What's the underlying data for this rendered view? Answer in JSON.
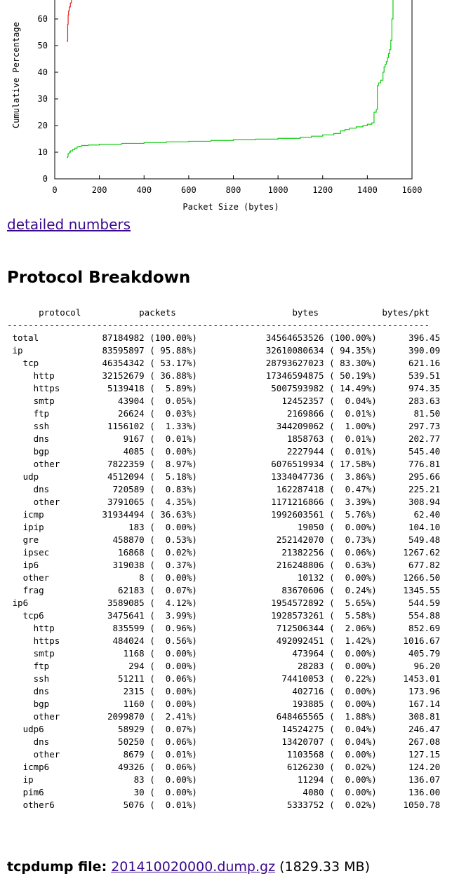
{
  "chart_data": {
    "type": "line",
    "xlabel": "Packet Size (bytes)",
    "ylabel": "Cumulative Percentage",
    "xlim": [
      0,
      1600
    ],
    "ylim_visible": [
      0,
      68
    ],
    "x_ticks": [
      0,
      200,
      400,
      600,
      800,
      1000,
      1200,
      1400,
      1600
    ],
    "y_ticks": [
      0,
      10,
      20,
      30,
      40,
      50,
      60
    ],
    "series": [
      {
        "color": "#e02020",
        "x": [
          55,
          57,
          58,
          60,
          62,
          65,
          70,
          75
        ],
        "y": [
          51.5,
          52,
          58,
          61.5,
          63,
          64.5,
          66,
          68
        ]
      },
      {
        "color": "#11cc11",
        "x": [
          55,
          58,
          60,
          65,
          70,
          80,
          90,
          100,
          110,
          120,
          150,
          200,
          300,
          400,
          500,
          600,
          700,
          800,
          900,
          1000,
          1100,
          1150,
          1200,
          1250,
          1280,
          1300,
          1320,
          1350,
          1380,
          1400,
          1420,
          1430,
          1440,
          1445,
          1450,
          1460,
          1470,
          1475,
          1480,
          1485,
          1490,
          1495,
          1500,
          1505,
          1510,
          1515
        ],
        "y": [
          8,
          8.5,
          9.5,
          10,
          10.5,
          11,
          11.5,
          12,
          12.2,
          12.5,
          12.7,
          13,
          13.3,
          13.6,
          13.9,
          14.1,
          14.4,
          14.7,
          14.9,
          15.2,
          15.6,
          16,
          16.5,
          17,
          18,
          18.5,
          19,
          19.5,
          20,
          20.5,
          21,
          25,
          26,
          35,
          36,
          37,
          40,
          42,
          43,
          44,
          45.5,
          47,
          48.5,
          52,
          60,
          68
        ]
      }
    ]
  },
  "links": {
    "detailed_numbers": "detailed numbers"
  },
  "section_title": "Protocol Breakdown",
  "table": {
    "headers": {
      "protocol": "protocol",
      "packets": "packets",
      "bytes": "bytes",
      "bytes_per_pkt": "bytes/pkt"
    },
    "rows": [
      {
        "indent": 0,
        "protocol": "total",
        "packets": "87184982",
        "packets_pct": "100.00%",
        "bytes": "34564653526",
        "bytes_pct": "100.00%",
        "bytes_per_pkt": "396.45"
      },
      {
        "indent": 0,
        "protocol": "ip",
        "packets": "83595897",
        "packets_pct": "95.88%",
        "bytes": "32610080634",
        "bytes_pct": "94.35%",
        "bytes_per_pkt": "390.09"
      },
      {
        "indent": 1,
        "protocol": "tcp",
        "packets": "46354342",
        "packets_pct": "53.17%",
        "bytes": "28793627023",
        "bytes_pct": "83.30%",
        "bytes_per_pkt": "621.16"
      },
      {
        "indent": 2,
        "protocol": "http",
        "packets": "32152679",
        "packets_pct": "36.88%",
        "bytes": "17346594875",
        "bytes_pct": "50.19%",
        "bytes_per_pkt": "539.51"
      },
      {
        "indent": 2,
        "protocol": "https",
        "packets": "5139418",
        "packets_pct": "5.89%",
        "bytes": "5007593982",
        "bytes_pct": "14.49%",
        "bytes_per_pkt": "974.35"
      },
      {
        "indent": 2,
        "protocol": "smtp",
        "packets": "43904",
        "packets_pct": "0.05%",
        "bytes": "12452357",
        "bytes_pct": "0.04%",
        "bytes_per_pkt": "283.63"
      },
      {
        "indent": 2,
        "protocol": "ftp",
        "packets": "26624",
        "packets_pct": "0.03%",
        "bytes": "2169866",
        "bytes_pct": "0.01%",
        "bytes_per_pkt": "81.50"
      },
      {
        "indent": 2,
        "protocol": "ssh",
        "packets": "1156102",
        "packets_pct": "1.33%",
        "bytes": "344209062",
        "bytes_pct": "1.00%",
        "bytes_per_pkt": "297.73"
      },
      {
        "indent": 2,
        "protocol": "dns",
        "packets": "9167",
        "packets_pct": "0.01%",
        "bytes": "1858763",
        "bytes_pct": "0.01%",
        "bytes_per_pkt": "202.77"
      },
      {
        "indent": 2,
        "protocol": "bgp",
        "packets": "4085",
        "packets_pct": "0.00%",
        "bytes": "2227944",
        "bytes_pct": "0.01%",
        "bytes_per_pkt": "545.40"
      },
      {
        "indent": 2,
        "protocol": "other",
        "packets": "7822359",
        "packets_pct": "8.97%",
        "bytes": "6076519934",
        "bytes_pct": "17.58%",
        "bytes_per_pkt": "776.81"
      },
      {
        "indent": 1,
        "protocol": "udp",
        "packets": "4512094",
        "packets_pct": "5.18%",
        "bytes": "1334047736",
        "bytes_pct": "3.86%",
        "bytes_per_pkt": "295.66"
      },
      {
        "indent": 2,
        "protocol": "dns",
        "packets": "720589",
        "packets_pct": "0.83%",
        "bytes": "162287418",
        "bytes_pct": "0.47%",
        "bytes_per_pkt": "225.21"
      },
      {
        "indent": 2,
        "protocol": "other",
        "packets": "3791065",
        "packets_pct": "4.35%",
        "bytes": "1171216866",
        "bytes_pct": "3.39%",
        "bytes_per_pkt": "308.94"
      },
      {
        "indent": 1,
        "protocol": "icmp",
        "packets": "31934494",
        "packets_pct": "36.63%",
        "bytes": "1992603561",
        "bytes_pct": "5.76%",
        "bytes_per_pkt": "62.40"
      },
      {
        "indent": 1,
        "protocol": "ipip",
        "packets": "183",
        "packets_pct": "0.00%",
        "bytes": "19050",
        "bytes_pct": "0.00%",
        "bytes_per_pkt": "104.10"
      },
      {
        "indent": 1,
        "protocol": "gre",
        "packets": "458870",
        "packets_pct": "0.53%",
        "bytes": "252142070",
        "bytes_pct": "0.73%",
        "bytes_per_pkt": "549.48"
      },
      {
        "indent": 1,
        "protocol": "ipsec",
        "packets": "16868",
        "packets_pct": "0.02%",
        "bytes": "21382256",
        "bytes_pct": "0.06%",
        "bytes_per_pkt": "1267.62"
      },
      {
        "indent": 1,
        "protocol": "ip6",
        "packets": "319038",
        "packets_pct": "0.37%",
        "bytes": "216248806",
        "bytes_pct": "0.63%",
        "bytes_per_pkt": "677.82"
      },
      {
        "indent": 1,
        "protocol": "other",
        "packets": "8",
        "packets_pct": "0.00%",
        "bytes": "10132",
        "bytes_pct": "0.00%",
        "bytes_per_pkt": "1266.50"
      },
      {
        "indent": 1,
        "protocol": "frag",
        "packets": "62183",
        "packets_pct": "0.07%",
        "bytes": "83670606",
        "bytes_pct": "0.24%",
        "bytes_per_pkt": "1345.55"
      },
      {
        "indent": 0,
        "protocol": "ip6",
        "packets": "3589085",
        "packets_pct": "4.12%",
        "bytes": "1954572892",
        "bytes_pct": "5.65%",
        "bytes_per_pkt": "544.59"
      },
      {
        "indent": 1,
        "protocol": "tcp6",
        "packets": "3475641",
        "packets_pct": "3.99%",
        "bytes": "1928573261",
        "bytes_pct": "5.58%",
        "bytes_per_pkt": "554.88"
      },
      {
        "indent": 2,
        "protocol": "http",
        "packets": "835599",
        "packets_pct": "0.96%",
        "bytes": "712506344",
        "bytes_pct": "2.06%",
        "bytes_per_pkt": "852.69"
      },
      {
        "indent": 2,
        "protocol": "https",
        "packets": "484024",
        "packets_pct": "0.56%",
        "bytes": "492092451",
        "bytes_pct": "1.42%",
        "bytes_per_pkt": "1016.67"
      },
      {
        "indent": 2,
        "protocol": "smtp",
        "packets": "1168",
        "packets_pct": "0.00%",
        "bytes": "473964",
        "bytes_pct": "0.00%",
        "bytes_per_pkt": "405.79"
      },
      {
        "indent": 2,
        "protocol": "ftp",
        "packets": "294",
        "packets_pct": "0.00%",
        "bytes": "28283",
        "bytes_pct": "0.00%",
        "bytes_per_pkt": "96.20"
      },
      {
        "indent": 2,
        "protocol": "ssh",
        "packets": "51211",
        "packets_pct": "0.06%",
        "bytes": "74410053",
        "bytes_pct": "0.22%",
        "bytes_per_pkt": "1453.01"
      },
      {
        "indent": 2,
        "protocol": "dns",
        "packets": "2315",
        "packets_pct": "0.00%",
        "bytes": "402716",
        "bytes_pct": "0.00%",
        "bytes_per_pkt": "173.96"
      },
      {
        "indent": 2,
        "protocol": "bgp",
        "packets": "1160",
        "packets_pct": "0.00%",
        "bytes": "193885",
        "bytes_pct": "0.00%",
        "bytes_per_pkt": "167.14"
      },
      {
        "indent": 2,
        "protocol": "other",
        "packets": "2099870",
        "packets_pct": "2.41%",
        "bytes": "648465565",
        "bytes_pct": "1.88%",
        "bytes_per_pkt": "308.81"
      },
      {
        "indent": 1,
        "protocol": "udp6",
        "packets": "58929",
        "packets_pct": "0.07%",
        "bytes": "14524275",
        "bytes_pct": "0.04%",
        "bytes_per_pkt": "246.47"
      },
      {
        "indent": 2,
        "protocol": "dns",
        "packets": "50250",
        "packets_pct": "0.06%",
        "bytes": "13420707",
        "bytes_pct": "0.04%",
        "bytes_per_pkt": "267.08"
      },
      {
        "indent": 2,
        "protocol": "other",
        "packets": "8679",
        "packets_pct": "0.01%",
        "bytes": "1103568",
        "bytes_pct": "0.00%",
        "bytes_per_pkt": "127.15"
      },
      {
        "indent": 1,
        "protocol": "icmp6",
        "packets": "49326",
        "packets_pct": "0.06%",
        "bytes": "6126230",
        "bytes_pct": "0.02%",
        "bytes_per_pkt": "124.20"
      },
      {
        "indent": 1,
        "protocol": "ip",
        "packets": "83",
        "packets_pct": "0.00%",
        "bytes": "11294",
        "bytes_pct": "0.00%",
        "bytes_per_pkt": "136.07"
      },
      {
        "indent": 1,
        "protocol": "pim6",
        "packets": "30",
        "packets_pct": "0.00%",
        "bytes": "4080",
        "bytes_pct": "0.00%",
        "bytes_per_pkt": "136.00"
      },
      {
        "indent": 1,
        "protocol": "other6",
        "packets": "5076",
        "packets_pct": "0.01%",
        "bytes": "5333752",
        "bytes_pct": "0.02%",
        "bytes_per_pkt": "1050.78"
      }
    ]
  },
  "footer": {
    "label": "tcpdump file:",
    "link_text": "201410020000.dump.gz",
    "size_text": "(1829.33 MB)"
  }
}
